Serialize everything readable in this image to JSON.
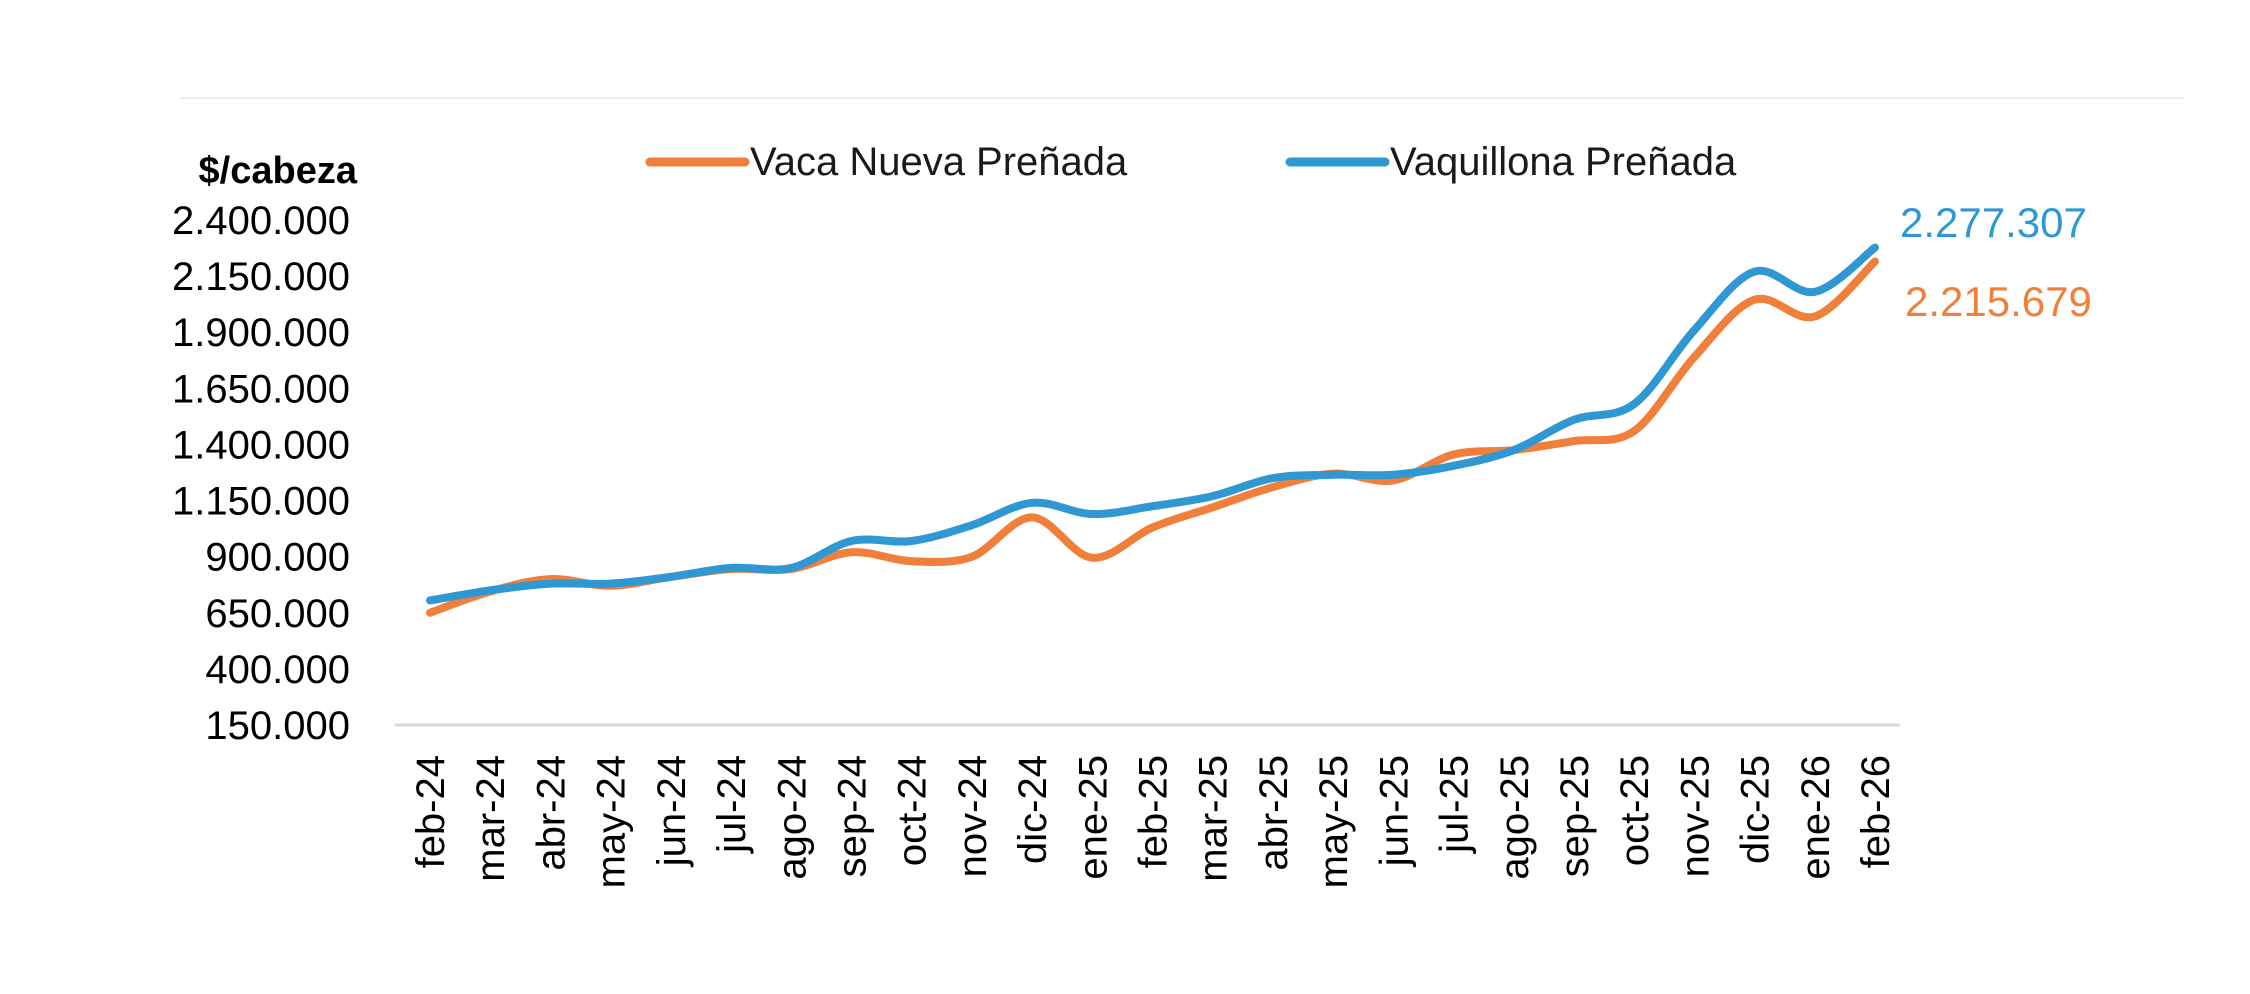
{
  "chart_data": {
    "type": "line",
    "ylabel": "$/cabeza",
    "xlabel": "",
    "ylim": [
      150000,
      2400000
    ],
    "yticks": [
      2400000,
      2150000,
      1900000,
      1650000,
      1400000,
      1150000,
      900000,
      650000,
      400000,
      150000
    ],
    "ytick_labels": [
      "2.400.000",
      "2.150.000",
      "1.900.000",
      "1.650.000",
      "1.400.000",
      "1.150.000",
      "900.000",
      "650.000",
      "400.000",
      "150.000"
    ],
    "categories": [
      "feb-24",
      "mar-24",
      "abr-24",
      "may-24",
      "jun-24",
      "jul-24",
      "ago-24",
      "sep-24",
      "oct-24",
      "nov-24",
      "dic-24",
      "ene-25",
      "feb-25",
      "mar-25",
      "abr-25",
      "may-25",
      "jun-25",
      "jul-25",
      "ago-25",
      "sep-25",
      "oct-25",
      "nov-25",
      "dic-25",
      "ene-26",
      "feb-26"
    ],
    "grid": false,
    "legend_position": "top",
    "series": [
      {
        "name": "Vaca Nueva Preñada",
        "color": "#F07F3C",
        "values": [
          650000,
          745000,
          800000,
          770000,
          810000,
          845000,
          845000,
          920000,
          880000,
          900000,
          1075000,
          895000,
          1030000,
          1120000,
          1210000,
          1270000,
          1240000,
          1355000,
          1375000,
          1415000,
          1460000,
          1790000,
          2045000,
          1970000,
          2215679
        ],
        "end_label": "2.215.679"
      },
      {
        "name": "Vaquillona Preñada",
        "color": "#2F98D3",
        "values": [
          705000,
          750000,
          780000,
          780000,
          810000,
          850000,
          850000,
          970000,
          970000,
          1040000,
          1140000,
          1090000,
          1125000,
          1170000,
          1250000,
          1265000,
          1265000,
          1305000,
          1375000,
          1510000,
          1580000,
          1910000,
          2170000,
          2080000,
          2277307
        ],
        "end_label": "2.277.307"
      }
    ]
  }
}
